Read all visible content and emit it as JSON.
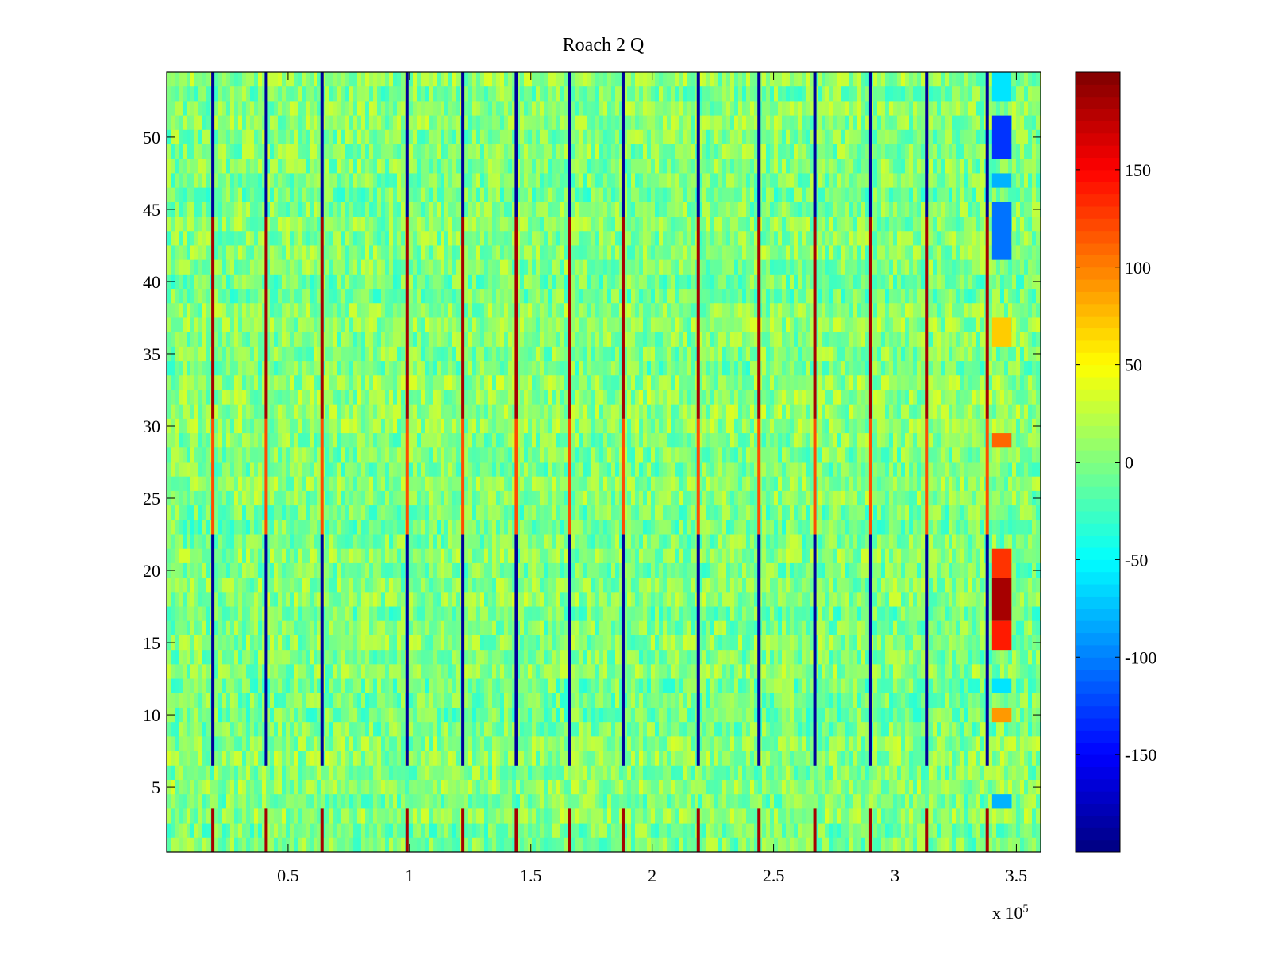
{
  "chart_data": {
    "type": "heatmap",
    "title": "Roach 2 Q",
    "xlabel": "",
    "ylabel": "",
    "x_range": [
      0,
      360000
    ],
    "y_range": [
      0.5,
      54.5
    ],
    "x_ticks": [
      50000,
      100000,
      150000,
      200000,
      250000,
      300000,
      350000
    ],
    "x_tick_labels": [
      "0.5",
      "1",
      "1.5",
      "2",
      "2.5",
      "3",
      "3.5"
    ],
    "x_exponent_label": "x 10",
    "x_exponent_power": "5",
    "y_ticks": [
      5,
      10,
      15,
      20,
      25,
      30,
      35,
      40,
      45,
      50
    ],
    "y_tick_labels": [
      "5",
      "10",
      "15",
      "20",
      "25",
      "30",
      "35",
      "40",
      "45",
      "50"
    ],
    "colorbar": {
      "range": [
        -200,
        200
      ],
      "ticks": [
        -150,
        -100,
        -50,
        0,
        50,
        100,
        150
      ],
      "tick_labels": [
        "-150",
        "-100",
        "-50",
        "0",
        "50",
        "100",
        "150"
      ],
      "colormap": "jet"
    },
    "background_value_range": [
      -30,
      30
    ],
    "periodic_stripes": {
      "x_positions": [
        19000,
        41000,
        64000,
        99000,
        122000,
        144000,
        166000,
        188000,
        219000,
        244000,
        267000,
        290000,
        313000,
        338000
      ],
      "segments": [
        {
          "y_from": 54.5,
          "y_to": 44.5,
          "value": -190
        },
        {
          "y_from": 44.5,
          "y_to": 30.5,
          "value": 185
        },
        {
          "y_from": 30.5,
          "y_to": 22.5,
          "value": 120
        },
        {
          "y_from": 22.5,
          "y_to": 6.5,
          "value": -190
        },
        {
          "y_from": 3.5,
          "y_to": 0.5,
          "value": 185
        }
      ]
    },
    "hot_region": {
      "x_range": [
        340000,
        348000
      ],
      "rows": [
        {
          "y_from": 54.5,
          "y_to": 52.5,
          "value": -60
        },
        {
          "y_from": 51.5,
          "y_to": 48.5,
          "value": -130
        },
        {
          "y_from": 47.5,
          "y_to": 46.5,
          "value": -80
        },
        {
          "y_from": 45.5,
          "y_to": 41.5,
          "value": -105
        },
        {
          "y_from": 37.5,
          "y_to": 35.5,
          "value": 70
        },
        {
          "y_from": 29.5,
          "y_to": 28.5,
          "value": 110
        },
        {
          "y_from": 21.5,
          "y_to": 19.5,
          "value": 130
        },
        {
          "y_from": 19.5,
          "y_to": 16.5,
          "value": 185
        },
        {
          "y_from": 16.5,
          "y_to": 14.5,
          "value": 140
        },
        {
          "y_from": 12.5,
          "y_to": 11.5,
          "value": -60
        },
        {
          "y_from": 10.5,
          "y_to": 9.5,
          "value": 90
        },
        {
          "y_from": 4.5,
          "y_to": 3.5,
          "value": -80
        }
      ]
    }
  }
}
